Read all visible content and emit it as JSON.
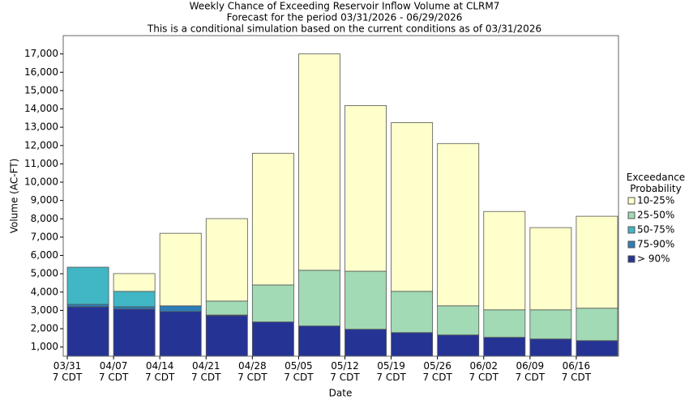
{
  "chart_data": {
    "type": "stacked_bar",
    "title": "Weekly Chance of Exceeding Reservoir Inflow Volume at CLRM7",
    "subtitle": "Forecast for the period 03/31/2026 - 06/29/2026",
    "note": "This is a conditional simulation based on the current conditions as of 03/31/2026",
    "x_label": "Date",
    "y_label": "Volume (AC-FT)",
    "legend_title": "Exceedance Probability",
    "legend": "right",
    "grid": false,
    "categories": [
      [
        "03/31",
        "7 CDT"
      ],
      [
        "04/07",
        "7 CDT"
      ],
      [
        "04/14",
        "7 CDT"
      ],
      [
        "04/21",
        "7 CDT"
      ],
      [
        "04/28",
        "7 CDT"
      ],
      [
        "05/05",
        "7 CDT"
      ],
      [
        "05/12",
        "7 CDT"
      ],
      [
        "05/19",
        "7 CDT"
      ],
      [
        "05/26",
        "7 CDT"
      ],
      [
        "06/02",
        "7 CDT"
      ],
      [
        "06/09",
        "7 CDT"
      ],
      [
        "06/16",
        "7 CDT"
      ]
    ],
    "series": [
      {
        "name": "> 90%",
        "color": "#253494",
        "values": [
          3200,
          3070,
          2940,
          2720,
          2370,
          2150,
          1970,
          1790,
          1660,
          1530,
          1440,
          1350
        ]
      },
      {
        "name": "75-90%",
        "color": "#2c7fb8",
        "values": [
          130,
          130,
          310,
          30,
          0,
          0,
          0,
          0,
          0,
          0,
          0,
          0
        ]
      },
      {
        "name": "50-75%",
        "color": "#41b6c4",
        "values": [
          2030,
          840,
          0,
          0,
          0,
          0,
          0,
          0,
          0,
          0,
          0,
          0
        ]
      },
      {
        "name": "25-50%",
        "color": "#a1dab4",
        "values": [
          0,
          0,
          0,
          760,
          2020,
          3040,
          3170,
          2250,
          1590,
          1500,
          1590,
          1770
        ]
      },
      {
        "name": "10-25%",
        "color": "#ffffcc",
        "values": [
          0,
          970,
          3960,
          4500,
          7190,
          11810,
          9040,
          9210,
          8860,
          5370,
          4490,
          5020
        ]
      }
    ],
    "ylim": [
      500,
      18000
    ],
    "yticks": [
      {
        "value": 1000,
        "label": "1,000"
      },
      {
        "value": 2000,
        "label": "2,000"
      },
      {
        "value": 3000,
        "label": "3,000"
      },
      {
        "value": 4000,
        "label": "4,000"
      },
      {
        "value": 5000,
        "label": "5,000"
      },
      {
        "value": 6000,
        "label": "6,000"
      },
      {
        "value": 7000,
        "label": "7,000"
      },
      {
        "value": 8000,
        "label": "8,000"
      },
      {
        "value": 9000,
        "label": "9,000"
      },
      {
        "value": 10000,
        "label": "10,000"
      },
      {
        "value": 11000,
        "label": "11,000"
      },
      {
        "value": 12000,
        "label": "12,000"
      },
      {
        "value": 13000,
        "label": "13,000"
      },
      {
        "value": 14000,
        "label": "14,000"
      },
      {
        "value": 15000,
        "label": "15,000"
      },
      {
        "value": 16000,
        "label": "16,000"
      },
      {
        "value": 17000,
        "label": "17,000"
      }
    ]
  }
}
